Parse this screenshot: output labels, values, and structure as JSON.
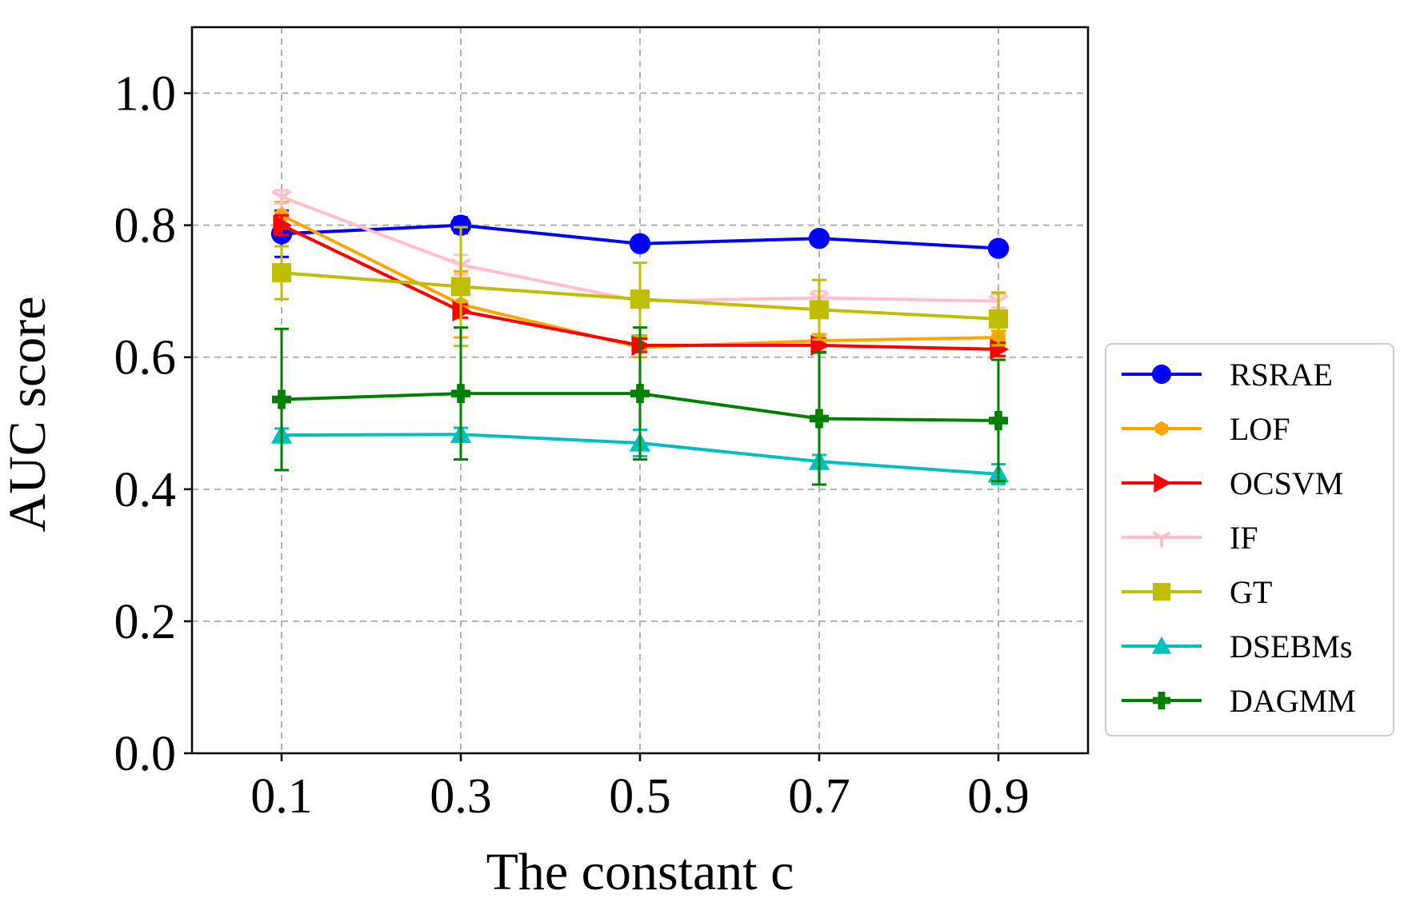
{
  "chart_data": {
    "type": "line",
    "xlabel": "The constant c",
    "ylabel": "AUC score",
    "x": [
      0.1,
      0.3,
      0.5,
      0.7,
      0.9
    ],
    "x_tick_labels": [
      "0.1",
      "0.3",
      "0.5",
      "0.7",
      "0.9"
    ],
    "y_ticks": [
      0.0,
      0.2,
      0.4,
      0.6,
      0.8,
      1.0
    ],
    "y_tick_labels": [
      "0.0",
      "0.2",
      "0.4",
      "0.6",
      "0.8",
      "1.0"
    ],
    "xlim": [
      0.0,
      1.0
    ],
    "ylim": [
      0.0,
      1.1
    ],
    "grid": true,
    "legend_position": "right-outside",
    "series": [
      {
        "name": "RSRAE",
        "color": "#0000ff",
        "marker": "circle",
        "values": [
          0.787,
          0.8,
          0.772,
          0.78,
          0.765
        ],
        "errors": [
          0.035,
          0.012,
          0.01,
          0.01,
          0.01
        ]
      },
      {
        "name": "LOF",
        "color": "#ffa500",
        "marker": "hexagon",
        "values": [
          0.815,
          0.68,
          0.615,
          0.625,
          0.63
        ],
        "errors": [
          0.02,
          0.05,
          0.015,
          0.01,
          0.01
        ]
      },
      {
        "name": "OCSVM",
        "color": "#ff0000",
        "marker": "triangle-right",
        "values": [
          0.8,
          0.67,
          0.618,
          0.618,
          0.612
        ],
        "errors": [
          0.015,
          0.01,
          0.01,
          0.01,
          0.01
        ]
      },
      {
        "name": "IF",
        "color": "#ffc0cb",
        "marker": "tri-down",
        "values": [
          0.843,
          0.74,
          0.685,
          0.69,
          0.685
        ],
        "errors": [
          0.01,
          0.015,
          0.01,
          0.01,
          0.01
        ]
      },
      {
        "name": "GT",
        "color": "#bfbf00",
        "marker": "square",
        "values": [
          0.728,
          0.707,
          0.688,
          0.672,
          0.658
        ],
        "errors": [
          0.04,
          0.09,
          0.055,
          0.045,
          0.04
        ]
      },
      {
        "name": "DSEBMs",
        "color": "#00bfbf",
        "marker": "triangle-up",
        "values": [
          0.482,
          0.483,
          0.47,
          0.442,
          0.423
        ],
        "errors": [
          0.01,
          0.01,
          0.02,
          0.01,
          0.015
        ]
      },
      {
        "name": "DAGMM",
        "color": "#008000",
        "marker": "plus-filled",
        "values": [
          0.536,
          0.545,
          0.545,
          0.507,
          0.504
        ],
        "errors": [
          0.107,
          0.1,
          0.1,
          0.1,
          0.092
        ]
      }
    ]
  }
}
